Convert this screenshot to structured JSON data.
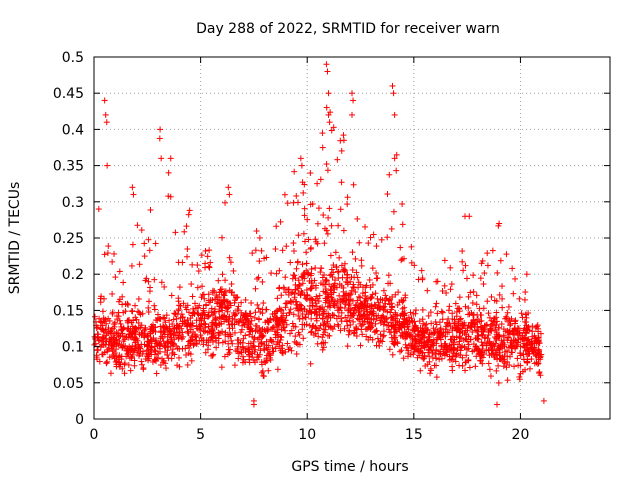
{
  "chart_data": {
    "type": "scatter",
    "title": "Day 288 of 2022, SRMTID for receiver warn",
    "xlabel": "GPS time / hours",
    "ylabel": "SRMTID / TECUs",
    "xlim": [
      0,
      24.2
    ],
    "ylim": [
      0,
      0.5
    ],
    "xticks": [
      0,
      5,
      10,
      15,
      20
    ],
    "yticks": [
      0,
      0.05,
      0.1,
      0.15,
      0.2,
      0.25,
      0.3,
      0.35,
      0.4,
      0.45,
      0.5
    ],
    "xtick_labels": [
      "0",
      "5",
      "10",
      "15",
      "20"
    ],
    "ytick_labels": [
      "0",
      "0.05",
      "0.1",
      "0.15",
      "0.2",
      "0.25",
      "0.3",
      "0.35",
      "0.4",
      "0.45",
      "0.5"
    ],
    "grid": true,
    "marker": "+",
    "color": "#ff0000",
    "series": [
      {
        "name": "SRMTID",
        "envelope": {
          "x": [
            0,
            0.5,
            1.0,
            1.5,
            2.0,
            2.5,
            3.0,
            3.5,
            4.0,
            4.5,
            5.0,
            5.5,
            6.0,
            6.5,
            7.0,
            7.5,
            8.0,
            8.5,
            9.0,
            9.5,
            10.0,
            10.5,
            11.0,
            11.5,
            12.0,
            12.5,
            13.0,
            13.5,
            14.0,
            14.5,
            15.0,
            15.5,
            16.0,
            16.5,
            17.0,
            17.5,
            18.0,
            18.5,
            19.0,
            19.5,
            20.0,
            20.5,
            21.0
          ],
          "low": [
            0.07,
            0.06,
            0.05,
            0.05,
            0.05,
            0.05,
            0.04,
            0.05,
            0.05,
            0.05,
            0.06,
            0.06,
            0.06,
            0.05,
            0.05,
            0.05,
            0.04,
            0.05,
            0.05,
            0.06,
            0.06,
            0.06,
            0.07,
            0.07,
            0.08,
            0.08,
            0.08,
            0.08,
            0.08,
            0.07,
            0.06,
            0.05,
            0.05,
            0.05,
            0.05,
            0.05,
            0.05,
            0.05,
            0.04,
            0.04,
            0.04,
            0.05,
            0.05
          ],
          "mid": [
            0.11,
            0.12,
            0.11,
            0.12,
            0.12,
            0.11,
            0.12,
            0.12,
            0.13,
            0.13,
            0.14,
            0.14,
            0.15,
            0.14,
            0.13,
            0.12,
            0.12,
            0.13,
            0.15,
            0.17,
            0.18,
            0.17,
            0.18,
            0.17,
            0.17,
            0.16,
            0.15,
            0.15,
            0.15,
            0.14,
            0.12,
            0.11,
            0.11,
            0.12,
            0.12,
            0.13,
            0.12,
            0.12,
            0.12,
            0.12,
            0.11,
            0.11,
            0.1
          ],
          "high": [
            0.2,
            0.44,
            0.2,
            0.22,
            0.32,
            0.25,
            0.4,
            0.36,
            0.25,
            0.29,
            0.26,
            0.27,
            0.32,
            0.27,
            0.26,
            0.26,
            0.28,
            0.26,
            0.34,
            0.36,
            0.33,
            0.38,
            0.49,
            0.4,
            0.45,
            0.3,
            0.27,
            0.27,
            0.46,
            0.28,
            0.23,
            0.2,
            0.21,
            0.22,
            0.21,
            0.28,
            0.26,
            0.25,
            0.27,
            0.21,
            0.21,
            0.14,
            0.12
          ]
        },
        "spikes": [
          {
            "x": 0.5,
            "y": 0.44
          },
          {
            "x": 0.55,
            "y": 0.42
          },
          {
            "x": 0.6,
            "y": 0.41
          },
          {
            "x": 1.8,
            "y": 0.32
          },
          {
            "x": 1.85,
            "y": 0.31
          },
          {
            "x": 3.1,
            "y": 0.4
          },
          {
            "x": 3.15,
            "y": 0.36
          },
          {
            "x": 3.6,
            "y": 0.36
          },
          {
            "x": 3.5,
            "y": 0.34
          },
          {
            "x": 6.3,
            "y": 0.32
          },
          {
            "x": 6.35,
            "y": 0.31
          },
          {
            "x": 9.7,
            "y": 0.36
          },
          {
            "x": 9.75,
            "y": 0.35
          },
          {
            "x": 10.9,
            "y": 0.49
          },
          {
            "x": 10.95,
            "y": 0.48
          },
          {
            "x": 11.0,
            "y": 0.45
          },
          {
            "x": 11.0,
            "y": 0.42
          },
          {
            "x": 11.05,
            "y": 0.41
          },
          {
            "x": 12.1,
            "y": 0.45
          },
          {
            "x": 12.15,
            "y": 0.44
          },
          {
            "x": 12.1,
            "y": 0.42
          },
          {
            "x": 14.0,
            "y": 0.46
          },
          {
            "x": 14.05,
            "y": 0.45
          },
          {
            "x": 14.1,
            "y": 0.42
          },
          {
            "x": 14.1,
            "y": 0.36
          },
          {
            "x": 17.4,
            "y": 0.28
          },
          {
            "x": 17.6,
            "y": 0.28
          },
          {
            "x": 19.0,
            "y": 0.27
          },
          {
            "x": 20.3,
            "y": 0.2
          },
          {
            "x": 21.1,
            "y": 0.025
          },
          {
            "x": 7.5,
            "y": 0.02
          },
          {
            "x": 7.5,
            "y": 0.025
          },
          {
            "x": 18.9,
            "y": 0.02
          }
        ]
      }
    ]
  }
}
